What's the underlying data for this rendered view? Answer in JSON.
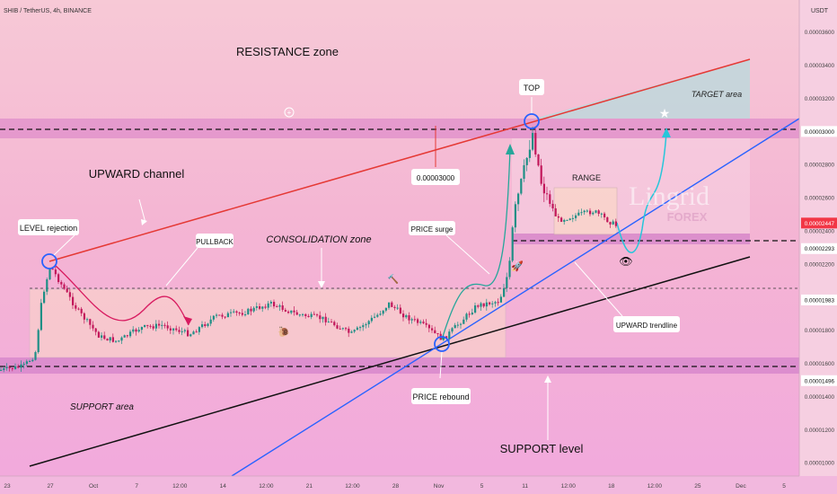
{
  "header": {
    "symbol": "SHIB / TetherUS, 4h, BINANCE",
    "currency": "USDT"
  },
  "chart_data": {
    "type": "candlestick",
    "ylim": [
      9.2e-06,
      3.75e-05
    ],
    "price_ticks": [
      "0.00001000",
      "0.00001200",
      "0.00001400",
      "0.00001600",
      "0.00001800",
      "0.00002200",
      "0.00002400",
      "0.00002600",
      "0.00002800",
      "0.00003200",
      "0.00003400",
      "0.00003600"
    ],
    "price_tags": [
      {
        "label": "0.00003000",
        "value": 3e-05,
        "bg": "#ffffff",
        "fg": "#111111"
      },
      {
        "label": "0.00002447",
        "value": 2.447e-05,
        "bg": "#f23645",
        "fg": "#ffffff"
      },
      {
        "label": "0.00002293",
        "value": 2.293e-05,
        "bg": "#ffffff",
        "fg": "#111111"
      },
      {
        "label": "0.00001983",
        "value": 1.983e-05,
        "bg": "#ffffff",
        "fg": "#111111"
      },
      {
        "label": "0.00001496",
        "value": 1.496e-05,
        "bg": "#ffffff",
        "fg": "#111111"
      }
    ],
    "x_ticks": [
      "23",
      "27",
      "Oct",
      "7",
      "12:00",
      "14",
      "12:00",
      "21",
      "12:00",
      "28",
      "Nov",
      "5",
      "11",
      "12:00",
      "18",
      "12:00",
      "25",
      "Dec",
      "5"
    ],
    "annotations": {
      "resistance_zone": "RESISTANCE zone",
      "upward_channel": "UPWARD channel",
      "level_rejection": "LEVEL rejection",
      "pullback": "PULLBACK",
      "consolidation_zone": "CONSOLIDATION zone",
      "price_surge": "PRICE surge",
      "price_rebound": "PRICE rebound",
      "price_callout": "0.00003000",
      "top": "TOP",
      "range": "RANGE",
      "target_area": "TARGET area",
      "upward_trendline": "UPWARD trendline",
      "support_area": "SUPPORT area",
      "support_level": "SUPPORT level",
      "watermark_brand": "Lingrid",
      "watermark_sub": "FOREX"
    },
    "colors": {
      "up": "#1f8f86",
      "down": "#c2185b",
      "channel_top": "#e53935",
      "channel_bottom": "#111111",
      "trendline": "#2962ff",
      "projection": "#26c6da"
    }
  }
}
